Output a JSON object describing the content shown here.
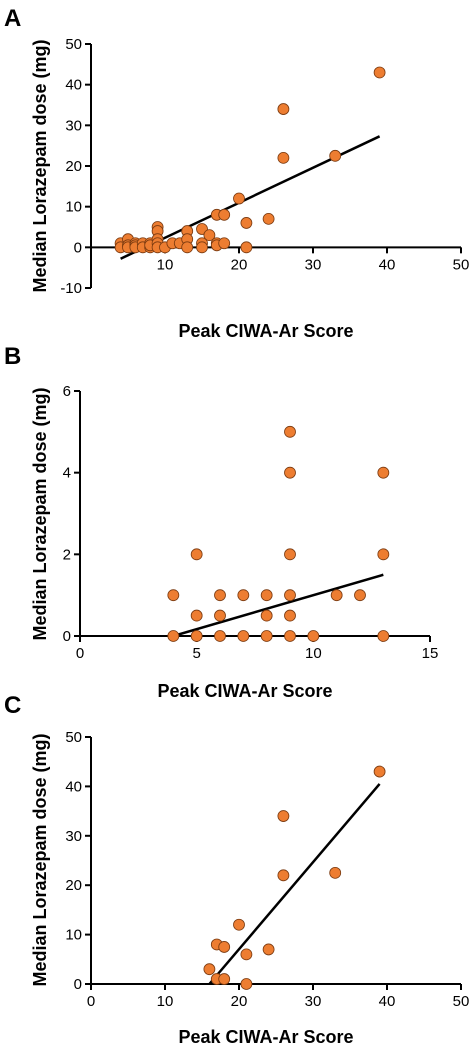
{
  "colors": {
    "point": "#ed7d31",
    "point_stroke": "#7a3a10",
    "axis": "#000000"
  },
  "chart_data": [
    {
      "type": "scatter",
      "panel": "A",
      "xlabel": "Peak  CIWA-Ar  Score",
      "ylabel": "Median Lorazepam dose  (mg)",
      "xlim": [
        0,
        50
      ],
      "ylim": [
        -10,
        50
      ],
      "xticks": [
        10,
        20,
        30,
        40,
        50
      ],
      "xtick_labels": [
        "10",
        "20",
        "30",
        "40",
        "50"
      ],
      "yticks": [
        -10,
        0,
        10,
        20,
        30,
        40,
        50
      ],
      "ytick_labels": [
        "-10",
        "0",
        "10",
        "20",
        "30",
        "40",
        "50"
      ],
      "points": [
        [
          4,
          1
        ],
        [
          4,
          0
        ],
        [
          5,
          2
        ],
        [
          5,
          0.5
        ],
        [
          5,
          0
        ],
        [
          6,
          1
        ],
        [
          6,
          0.5
        ],
        [
          6,
          0
        ],
        [
          7,
          1
        ],
        [
          7,
          0
        ],
        [
          8,
          1
        ],
        [
          8,
          0
        ],
        [
          8,
          0.5
        ],
        [
          9,
          5
        ],
        [
          9,
          4
        ],
        [
          9,
          2
        ],
        [
          9,
          1
        ],
        [
          9,
          0
        ],
        [
          10,
          0
        ],
        [
          11,
          1
        ],
        [
          12,
          1
        ],
        [
          13,
          4
        ],
        [
          13,
          2
        ],
        [
          13,
          0
        ],
        [
          15,
          4.5
        ],
        [
          15,
          1
        ],
        [
          15,
          0
        ],
        [
          16,
          3
        ],
        [
          17,
          8
        ],
        [
          17,
          1
        ],
        [
          17,
          0.5
        ],
        [
          18,
          8
        ],
        [
          18,
          1
        ],
        [
          20,
          12
        ],
        [
          21,
          6
        ],
        [
          21,
          0
        ],
        [
          24,
          7
        ],
        [
          26,
          34
        ],
        [
          26,
          22
        ],
        [
          33,
          22.5
        ],
        [
          39,
          43
        ]
      ],
      "fit_line": {
        "x": [
          4,
          39
        ],
        "y": [
          -2.8,
          27.3
        ]
      },
      "grid": false
    },
    {
      "type": "scatter",
      "panel": "B",
      "xlabel": "Peak  CIWA-Ar  Score",
      "ylabel": "Median Lorazepam dose  (mg)",
      "xlim": [
        0,
        15
      ],
      "ylim": [
        0,
        6
      ],
      "xticks": [
        0,
        5,
        10,
        15
      ],
      "xtick_labels": [
        "0",
        "5",
        "10",
        "15"
      ],
      "yticks": [
        0,
        2,
        4,
        6
      ],
      "ytick_labels": [
        "0",
        "2",
        "4",
        "6"
      ],
      "points": [
        [
          4,
          1
        ],
        [
          4,
          0
        ],
        [
          5,
          2
        ],
        [
          5,
          0.5
        ],
        [
          5,
          0
        ],
        [
          6,
          1
        ],
        [
          6,
          0.5
        ],
        [
          6,
          0
        ],
        [
          7,
          1
        ],
        [
          7,
          0
        ],
        [
          8,
          1
        ],
        [
          8,
          0.5
        ],
        [
          8,
          0
        ],
        [
          9,
          5
        ],
        [
          9,
          4
        ],
        [
          9,
          2
        ],
        [
          9,
          1
        ],
        [
          9,
          0.5
        ],
        [
          9,
          0
        ],
        [
          10,
          0
        ],
        [
          11,
          1
        ],
        [
          12,
          1
        ],
        [
          13,
          4
        ],
        [
          13,
          2
        ],
        [
          13,
          0
        ]
      ],
      "fit_line": {
        "x": [
          4,
          13
        ],
        "y": [
          0,
          1.5
        ]
      },
      "grid": false
    },
    {
      "type": "scatter",
      "panel": "C",
      "xlabel": "Peak  CIWA-Ar  Score",
      "ylabel": "Median Lorazepam dose  (mg)",
      "xlim": [
        0,
        50
      ],
      "ylim": [
        0,
        50
      ],
      "xticks": [
        0,
        10,
        20,
        30,
        40,
        50
      ],
      "xtick_labels": [
        "0",
        "10",
        "20",
        "30",
        "40",
        "50"
      ],
      "yticks": [
        0,
        10,
        20,
        30,
        40,
        50
      ],
      "ytick_labels": [
        "0",
        "10",
        "20",
        "30",
        "40",
        "50"
      ],
      "points": [
        [
          16,
          3
        ],
        [
          17,
          8
        ],
        [
          17,
          1
        ],
        [
          18,
          7.5
        ],
        [
          18,
          1
        ],
        [
          20,
          12
        ],
        [
          21,
          6
        ],
        [
          21,
          0
        ],
        [
          24,
          7
        ],
        [
          26,
          34
        ],
        [
          26,
          22
        ],
        [
          33,
          22.5
        ],
        [
          39,
          43
        ]
      ],
      "fit_line": {
        "x": [
          16,
          39
        ],
        "y": [
          0,
          40.5
        ]
      },
      "grid": false
    }
  ]
}
